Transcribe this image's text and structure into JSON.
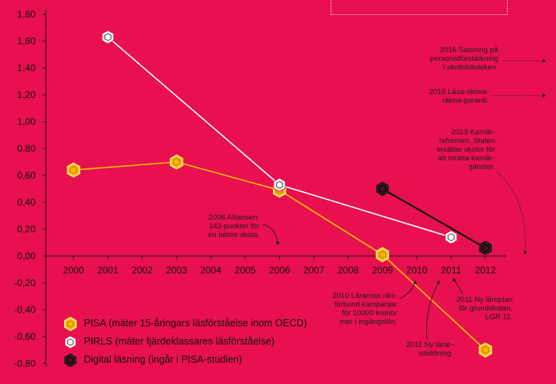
{
  "chart_data": {
    "type": "line",
    "x": [
      2000,
      2001,
      2002,
      2003,
      2004,
      2005,
      2006,
      2007,
      2008,
      2009,
      2010,
      2011,
      2012
    ],
    "y_ticks": [
      "1,80",
      "1,60",
      "1,40",
      "1,20",
      "1,00",
      "0,80",
      "0,60",
      "0,40",
      "0,20",
      "0,00",
      "-0,20",
      "-0,40",
      "-0,60",
      "-0,80"
    ],
    "ylim": [
      -0.8,
      1.8
    ],
    "series": [
      {
        "name": "PISA (mäter 15-åringars läsförståelse inom OECD)",
        "color": "#ffc000",
        "marker_fill": "#ffb400",
        "x": [
          2000,
          2003,
          2006,
          2009,
          2012
        ],
        "values": [
          0.64,
          0.7,
          0.49,
          0.01,
          -0.7
        ]
      },
      {
        "name": "PIRLS (mäter fjärdeklassares läsförståelse)",
        "color": "#ffffff",
        "marker_fill": "#ffffff",
        "x": [
          2001,
          2006,
          2011
        ],
        "values": [
          1.63,
          0.53,
          0.14
        ]
      },
      {
        "name": "Digital  läsning (ingår i PISA-studien)",
        "color": "#111111",
        "marker_fill": "#222222",
        "x": [
          2009,
          2012
        ],
        "values": [
          0.5,
          0.06
        ]
      }
    ],
    "annotations": [
      "2006 Alliansen: 143 punkter för en bättre skola.",
      "2010 Lärarnas riks-förbund kampanjar för 10000 kronor mer i ingångslön.",
      "2011 Ny lärar-utbildning.",
      "2011 Ny läroplan för grundskolan, LGR 11.",
      "2013 Karriär-reformen. Staten ersätter skolor för att inrätta karriär-tjänster.",
      "2016 Satsning på personalförstärkning i skolbiblioteken.",
      "2016 Läsa-skriva-räkna-garanti."
    ],
    "grid": false,
    "legend_position": "bottom-left"
  },
  "annotations": {
    "a2006_l1": "2006 Alliansen:",
    "a2006_l2": "143 punkter för",
    "a2006_l3": "en bättre skola.",
    "a2010_l1": "2010 Lärarnas riks-",
    "a2010_l2": "förbund kampanjar",
    "a2010_l3": "för 10000 kronor",
    "a2010_l4": "mer i ingångslön.",
    "a2011_l1": "2011 Ny lärar-",
    "a2011_l2": "utbildning.",
    "a2011b_l1": "2011 Ny läroplan",
    "a2011b_l2": "för grundskolan,",
    "a2011b_l3": "LGR 11.",
    "a2013_l1": "2013 Karriär-",
    "a2013_l2": "reformen. Staten",
    "a2013_l3": "ersätter skolor för",
    "a2013_l4": "att inrätta karriär-",
    "a2013_l5": "tjänster.",
    "a2016a_l1": "2016 Satsning på",
    "a2016a_l2": "personalförstärkning",
    "a2016a_l3": "i skolbiblioteken.",
    "a2016b_l1": "2016 Läsa-skriva-",
    "a2016b_l2": "räkna-garanti."
  },
  "legend": {
    "pisa": "PISA (mäter 15-åringars läsförståelse inom OECD)",
    "pirls": "PIRLS (mäter fjärdeklassares läsförståelse)",
    "digital": "Digital  läsning (ingår i PISA-studien)"
  }
}
